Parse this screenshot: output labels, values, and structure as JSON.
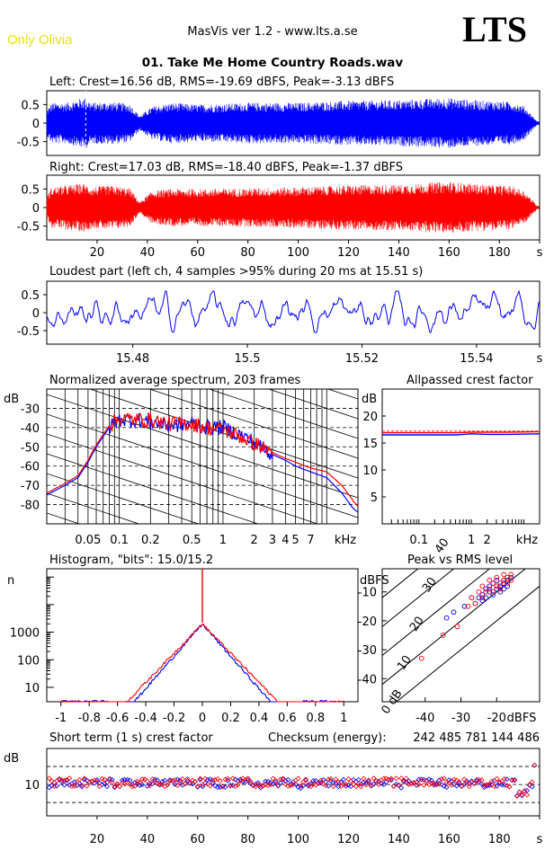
{
  "header": {
    "app_version": "MasVis ver 1.2 - www.lts.a.se",
    "album_badge": "Only Olivia",
    "logo": "LTS",
    "track_title": "01. Take Me Home Country Roads.wav"
  },
  "colors": {
    "left": "#0000ff",
    "right": "#ff0000",
    "badge": "#e8e010"
  },
  "chart_data": [
    {
      "id": "left-waveform",
      "type": "line",
      "title": "Left: Crest=16.56 dB, RMS=-19.69 dBFS, Peak=-3.13 dBFS",
      "yticks": [
        "0.5",
        "0",
        "-0.5"
      ],
      "ylim": [
        -0.8,
        0.8
      ],
      "xlim": [
        0,
        196
      ],
      "marker_time_s": 15.51,
      "envelope": {
        "x": [
          0,
          2,
          8,
          15,
          18,
          25,
          33,
          37,
          42,
          50,
          60,
          80,
          100,
          120,
          140,
          160,
          170,
          185,
          190,
          195
        ],
        "amp": [
          0.35,
          0.55,
          0.55,
          0.7,
          0.55,
          0.58,
          0.52,
          0.2,
          0.45,
          0.55,
          0.5,
          0.55,
          0.55,
          0.6,
          0.62,
          0.68,
          0.62,
          0.58,
          0.45,
          0.05
        ]
      }
    },
    {
      "id": "right-waveform",
      "type": "line",
      "title": "Right: Crest=17.03 dB, RMS=-18.40 dBFS, Peak=-1.37 dBFS",
      "yticks": [
        "0.5",
        "0",
        "-0.5"
      ],
      "ylim": [
        -0.8,
        0.8
      ],
      "xlim": [
        0,
        196
      ],
      "xticks": [
        "20",
        "40",
        "60",
        "80",
        "100",
        "120",
        "140",
        "160",
        "180",
        "s"
      ],
      "envelope": {
        "x": [
          0,
          2,
          8,
          15,
          18,
          25,
          33,
          37,
          42,
          50,
          60,
          80,
          100,
          120,
          140,
          160,
          170,
          185,
          190,
          195
        ],
        "amp": [
          0.3,
          0.55,
          0.6,
          0.65,
          0.55,
          0.6,
          0.52,
          0.15,
          0.45,
          0.5,
          0.5,
          0.52,
          0.55,
          0.6,
          0.62,
          0.7,
          0.64,
          0.58,
          0.45,
          0.05
        ]
      }
    },
    {
      "id": "loudest-part",
      "type": "line",
      "title": "Loudest part (left  ch, 4 samples >95% during 20 ms at 15.51 s)",
      "yticks": [
        "0.5",
        "0",
        "-0.5"
      ],
      "ylim": [
        -0.8,
        0.8
      ],
      "xlim": [
        15.465,
        15.551
      ],
      "xticks": [
        "15.48",
        "15.5",
        "15.52",
        "15.54",
        "s"
      ]
    },
    {
      "id": "spectrum",
      "type": "line",
      "title": "Normalized average spectrum, 203 frames",
      "ylabel": "dB",
      "xlabel": "kHz",
      "yticks": [
        "-30",
        "-40",
        "-50",
        "-60",
        "-70",
        "-80"
      ],
      "ylim": [
        -90,
        -20
      ],
      "xticks": [
        "0.05",
        "0.1",
        "0.2",
        "0.5",
        "1",
        "2",
        "3",
        "4",
        "5",
        "7",
        "kHz"
      ],
      "xlim_khz": [
        0.02,
        20
      ],
      "series": [
        {
          "name": "Left",
          "freq_khz": [
            0.02,
            0.03,
            0.04,
            0.05,
            0.06,
            0.08,
            0.1,
            0.15,
            0.2,
            0.3,
            0.5,
            0.7,
            1,
            1.5,
            2,
            3,
            4,
            5,
            7,
            10,
            14,
            18,
            20
          ],
          "db": [
            -75,
            -70,
            -66,
            -58,
            -50,
            -40,
            -36,
            -36,
            -37,
            -39,
            -38,
            -40,
            -40,
            -44,
            -48,
            -54,
            -57,
            -60,
            -63,
            -66,
            -74,
            -82,
            -84
          ]
        },
        {
          "name": "Right",
          "freq_khz": [
            0.02,
            0.03,
            0.04,
            0.05,
            0.06,
            0.08,
            0.1,
            0.15,
            0.2,
            0.3,
            0.5,
            0.7,
            1,
            1.5,
            2,
            3,
            4,
            5,
            7,
            10,
            14,
            18,
            20
          ],
          "db": [
            -74,
            -69,
            -65,
            -57,
            -49,
            -39,
            -35,
            -36,
            -36,
            -38,
            -38,
            -40,
            -41,
            -45,
            -48,
            -53,
            -56,
            -58,
            -61,
            -63,
            -70,
            -78,
            -81
          ]
        }
      ]
    },
    {
      "id": "allpassed-crest",
      "type": "line",
      "title": "Allpassed crest factor",
      "ylabel": "dB",
      "xlabel": "kHz",
      "yticks": [
        "20",
        "15",
        "10",
        "5"
      ],
      "ylim": [
        0,
        25
      ],
      "xticks": [
        "0.1",
        "1",
        "2",
        "kHz"
      ],
      "xlim_khz": [
        0.02,
        20
      ],
      "series": [
        {
          "name": "Left",
          "freq_khz": [
            0.02,
            0.1,
            0.5,
            1,
            2,
            5,
            20
          ],
          "db": [
            16.5,
            16.5,
            16.5,
            16.7,
            16.6,
            16.6,
            16.7
          ]
        },
        {
          "name": "Right",
          "freq_khz": [
            0.02,
            0.1,
            0.5,
            1,
            2,
            5,
            20
          ],
          "db": [
            16.9,
            16.9,
            16.9,
            17.0,
            17.0,
            17.0,
            17.1
          ]
        }
      ]
    },
    {
      "id": "histogram",
      "type": "line",
      "title": "Histogram, \"bits\": 15.0/15.2",
      "ylabel": "n",
      "yticks": [
        "1000",
        "100",
        "10"
      ],
      "ylim_log": [
        3,
        200000
      ],
      "xticks": [
        "-1",
        "-0.8",
        "-0.6",
        "-0.4",
        "-0.2",
        "0",
        "0.2",
        "0.4",
        "0.6",
        "0.8",
        "1"
      ],
      "xlim": [
        -1.1,
        1.1
      ],
      "series": [
        {
          "name": "Left",
          "peak_count": 2000,
          "decay_per_unit": 13.5,
          "cutoff": 0.66
        },
        {
          "name": "Right",
          "peak_count": 2000,
          "decay_per_unit": 12.2,
          "cutoff": 0.86
        }
      ]
    },
    {
      "id": "peak-vs-rms",
      "type": "scatter",
      "title": "Peak vs RMS level",
      "ylabel": "dBFS",
      "xlabel": "dBFS",
      "yticks": [
        "-10",
        "-20",
        "-30",
        "-40"
      ],
      "ylim": [
        -48,
        -2
      ],
      "xticks": [
        "-40",
        "-30",
        "-20",
        "dBFS"
      ],
      "xlim": [
        -52,
        -8
      ],
      "diagonal_labels": [
        "40",
        "30",
        "20",
        "10",
        "0 dB"
      ],
      "series": [
        {
          "name": "Left",
          "rms": [
            -34,
            -32,
            -29,
            -27,
            -26,
            -25,
            -24,
            -24,
            -23,
            -23,
            -22,
            -22,
            -21,
            -21,
            -20,
            -20,
            -19,
            -19,
            -18,
            -18,
            -18,
            -17,
            -17,
            -16
          ],
          "peak": [
            -19,
            -17,
            -15,
            -12,
            -14,
            -12,
            -11,
            -13,
            -9,
            -12,
            -10,
            -8,
            -11,
            -7,
            -9,
            -6,
            -8,
            -10,
            -6,
            -7,
            -9,
            -6,
            -8,
            -5
          ]
        },
        {
          "name": "Right",
          "rms": [
            -41,
            -35,
            -31,
            -28,
            -27,
            -26,
            -25,
            -24,
            -24,
            -23,
            -22,
            -22,
            -21,
            -21,
            -20,
            -20,
            -19,
            -19,
            -18,
            -18,
            -17,
            -17,
            -16,
            -16
          ],
          "peak": [
            -33,
            -25,
            -22,
            -15,
            -12,
            -14,
            -10,
            -12,
            -8,
            -10,
            -9,
            -6,
            -10,
            -7,
            -8,
            -5,
            -7,
            -9,
            -4,
            -6,
            -5,
            -7,
            -4,
            -6
          ]
        }
      ]
    },
    {
      "id": "short-term-crest",
      "type": "scatter",
      "title": "Short term (1 s) crest factor",
      "ylabel": "dB",
      "yticks": [
        "10"
      ],
      "ylim_log": [
        3,
        40
      ],
      "ref_lines_db": [
        20,
        10,
        5
      ],
      "xlim": [
        0,
        196
      ],
      "xticks": [
        "20",
        "40",
        "60",
        "80",
        "100",
        "120",
        "140",
        "160",
        "180",
        "s"
      ],
      "series": [
        {
          "name": "Left",
          "median_db": 10.5,
          "spread_db": 1.8
        },
        {
          "name": "Right",
          "median_db": 11.0,
          "spread_db": 1.8
        }
      ]
    }
  ],
  "checksum": {
    "label": "Checksum (energy):",
    "value": "242 485 781 144 486"
  }
}
